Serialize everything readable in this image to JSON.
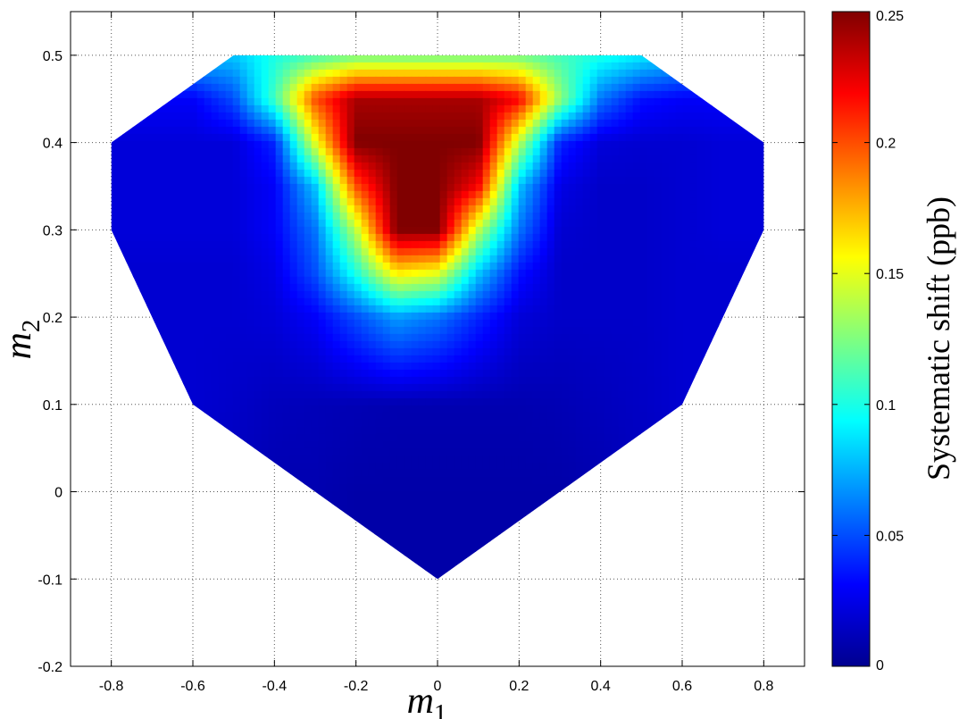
{
  "chart_data": {
    "type": "heatmap",
    "title": "",
    "xlabel": "m",
    "xlabel_sub": "1",
    "ylabel": "m",
    "ylabel_sub": "2",
    "xlim": [
      -0.9,
      0.9
    ],
    "ylim": [
      -0.2,
      0.55
    ],
    "x_ticks": [
      -0.8,
      -0.6,
      -0.4,
      -0.2,
      0,
      0.2,
      0.4,
      0.6,
      0.8
    ],
    "x_tick_labels": [
      "-0.8",
      "-0.6",
      "-0.4",
      "-0.2",
      "0",
      "0.2",
      "0.4",
      "0.6",
      "0.8"
    ],
    "y_ticks": [
      -0.2,
      -0.1,
      0,
      0.1,
      0.2,
      0.3,
      0.4,
      0.5
    ],
    "y_tick_labels": [
      "-0.2",
      "-0.1",
      "0",
      "0.1",
      "0.2",
      "0.3",
      "0.4",
      "0.5"
    ],
    "grid": true,
    "colormap": "jet",
    "colorbar": {
      "label": "Systematic shift (ppb)",
      "clim": [
        0,
        0.25
      ],
      "ticks": [
        0,
        0.05,
        0.1,
        0.15,
        0.2,
        0.25
      ],
      "tick_labels": [
        "0",
        "0.05",
        "0.1",
        "0.15",
        "0.2",
        "0.25"
      ]
    },
    "region_boundary": [
      [
        -0.5,
        0.5
      ],
      [
        0.5,
        0.5
      ],
      [
        0.8,
        0.4
      ],
      [
        0.8,
        0.3
      ],
      [
        0.6,
        0.1
      ],
      [
        0.0,
        -0.1
      ],
      [
        -0.6,
        0.1
      ],
      [
        -0.8,
        0.3
      ],
      [
        -0.8,
        0.4
      ]
    ],
    "grid_x": [
      -0.8,
      -0.7,
      -0.6,
      -0.5,
      -0.4,
      -0.3,
      -0.2,
      -0.1,
      0.0,
      0.1,
      0.2,
      0.3,
      0.4,
      0.5,
      0.6,
      0.7,
      0.8
    ],
    "grid_y": [
      -0.1,
      0.0,
      0.1,
      0.2,
      0.25,
      0.3,
      0.35,
      0.4,
      0.45,
      0.5
    ],
    "values": [
      [
        0.01,
        0.01,
        0.01,
        0.01,
        0.01,
        0.01,
        0.01,
        0.01,
        0.01,
        0.01,
        0.01,
        0.01,
        0.01,
        0.01,
        0.01,
        0.01,
        0.01
      ],
      [
        0.015,
        0.015,
        0.015,
        0.015,
        0.012,
        0.012,
        0.01,
        0.01,
        0.01,
        0.01,
        0.01,
        0.01,
        0.012,
        0.015,
        0.015,
        0.015,
        0.015
      ],
      [
        0.02,
        0.02,
        0.02,
        0.018,
        0.015,
        0.014,
        0.013,
        0.012,
        0.012,
        0.012,
        0.012,
        0.013,
        0.015,
        0.017,
        0.02,
        0.02,
        0.02
      ],
      [
        0.02,
        0.02,
        0.02,
        0.02,
        0.022,
        0.03,
        0.05,
        0.07,
        0.06,
        0.04,
        0.022,
        0.018,
        0.018,
        0.018,
        0.02,
        0.02,
        0.02
      ],
      [
        0.02,
        0.02,
        0.02,
        0.02,
        0.025,
        0.05,
        0.1,
        0.16,
        0.15,
        0.08,
        0.035,
        0.018,
        0.018,
        0.018,
        0.02,
        0.02,
        0.02
      ],
      [
        0.022,
        0.022,
        0.022,
        0.022,
        0.03,
        0.06,
        0.14,
        0.25,
        0.25,
        0.14,
        0.06,
        0.02,
        0.018,
        0.018,
        0.02,
        0.022,
        0.022
      ],
      [
        0.022,
        0.022,
        0.022,
        0.022,
        0.03,
        0.08,
        0.2,
        0.25,
        0.25,
        0.22,
        0.08,
        0.025,
        0.018,
        0.018,
        0.02,
        0.022,
        0.022
      ],
      [
        0.022,
        0.022,
        0.022,
        0.022,
        0.04,
        0.15,
        0.25,
        0.25,
        0.25,
        0.25,
        0.14,
        0.04,
        0.022,
        0.02,
        0.02,
        0.022,
        0.022
      ],
      [
        0.03,
        0.03,
        0.03,
        0.05,
        0.11,
        0.2,
        0.24,
        0.24,
        0.24,
        0.24,
        0.22,
        0.13,
        0.06,
        0.035,
        0.03,
        0.03,
        0.03
      ],
      [
        0.08,
        0.08,
        0.08,
        0.08,
        0.1,
        0.11,
        0.12,
        0.12,
        0.12,
        0.12,
        0.12,
        0.11,
        0.1,
        0.09,
        0.08,
        0.08,
        0.08
      ]
    ]
  }
}
